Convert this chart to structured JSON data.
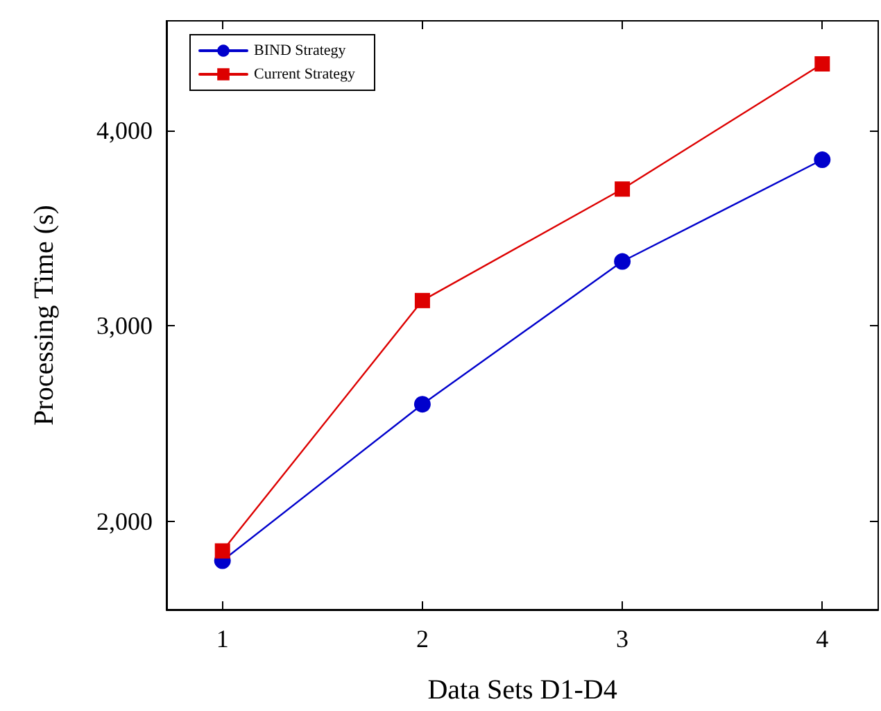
{
  "chart_data": {
    "type": "line",
    "xlabel": "Data Sets D1-D4",
    "ylabel": "Processing Time (s)",
    "x": [
      1,
      2,
      3,
      4
    ],
    "series": [
      {
        "name": "BIND Strategy",
        "color": "#0000cc",
        "marker": "circle",
        "values": [
          1800,
          2600,
          3330,
          3850
        ]
      },
      {
        "name": "Current Strategy",
        "color": "#dd0000",
        "marker": "square",
        "values": [
          1850,
          3130,
          3700,
          4340
        ]
      }
    ],
    "xlim": [
      0.72,
      4.28
    ],
    "xticks": [
      1,
      2,
      3,
      4
    ],
    "ylim": [
      1550,
      4560
    ],
    "yticks": [
      {
        "value": 2000,
        "label": "2,000"
      },
      {
        "value": 3000,
        "label": "3,000"
      },
      {
        "value": 4000,
        "label": "4,000"
      }
    ],
    "grid": false,
    "legend": "top left",
    "line_style": "solid"
  }
}
